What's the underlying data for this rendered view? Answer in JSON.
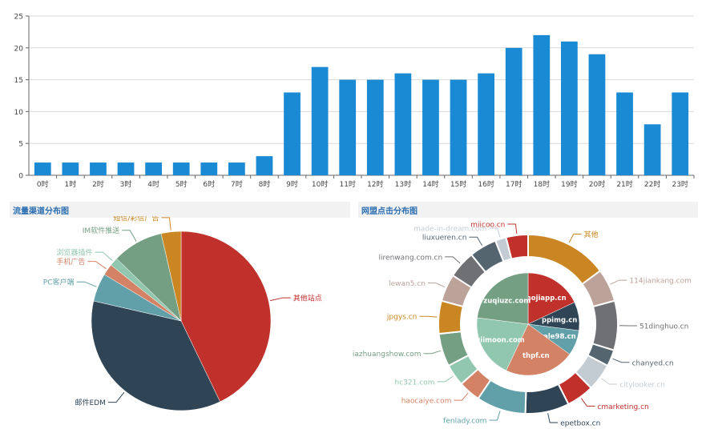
{
  "panels": {
    "traffic_channel_title": "流量渠道分布图",
    "affiliate_click_title": "网盟点击分布图"
  },
  "chart_data": [
    {
      "type": "bar",
      "categories": [
        "0时",
        "1时",
        "2时",
        "3时",
        "4时",
        "5时",
        "6时",
        "7时",
        "8时",
        "9时",
        "10时",
        "11时",
        "12时",
        "13时",
        "14时",
        "15时",
        "16时",
        "17时",
        "18时",
        "19时",
        "20时",
        "21时",
        "22时",
        "23时"
      ],
      "values": [
        2,
        2,
        2,
        2,
        2,
        2,
        2,
        2,
        3,
        13,
        17,
        15,
        15,
        16,
        15,
        15,
        16,
        20,
        22,
        21,
        19,
        13,
        8,
        13
      ],
      "ylim": [
        0,
        25
      ],
      "yticks": [
        0,
        5,
        10,
        15,
        20,
        25
      ],
      "grid": true,
      "color": "#1a8ad4"
    },
    {
      "type": "pie",
      "labels": [
        "其他站点",
        "邮件EDM",
        "PC客户端",
        "手机广告",
        "浏览器插件",
        "IM软件推送",
        "短信/彩信广告"
      ],
      "values": [
        42,
        35,
        5,
        2,
        1.5,
        9,
        3.5
      ],
      "colors": [
        "#c1312c",
        "#2f4555",
        "#61a0a8",
        "#d48265",
        "#91c7ae",
        "#749f83",
        "#ca8622"
      ]
    },
    {
      "type": "pie",
      "inner": {
        "labels": [
          "mojiapp.cn",
          "ppimg.cn",
          "sale98.cn",
          "thpf.cn",
          "viimoon.com",
          "zuqiuzc.com"
        ],
        "values": [
          18,
          9,
          8,
          22,
          20,
          23
        ],
        "colors": [
          "#c1312c",
          "#2f4555",
          "#61a0a8",
          "#d48265",
          "#91c7ae",
          "#749f83"
        ]
      },
      "outer": {
        "labels": [
          "其他",
          "114jiankang.com",
          "51dinghuo.cn",
          "chanyed.cn",
          "citylooker.cn",
          "cmarketing.cn",
          "epetbox.cn",
          "fenlady.com",
          "haocaiye.com",
          "hc321.com",
          "jiazhuangshow.com",
          "jpgys.cn",
          "lewan5.cn",
          "lirenwang.com.cn",
          "liuxueren.cn",
          "made-in-dream.com",
          "miicoo.cn"
        ],
        "values": [
          15,
          6,
          9,
          3,
          5,
          5,
          8,
          9,
          4,
          4,
          6,
          6,
          5,
          5,
          5,
          2,
          4
        ],
        "colors": [
          "#ca8622",
          "#bda29a",
          "#6e7074",
          "#546570",
          "#c4ccd3",
          "#c1312c",
          "#2f4555",
          "#61a0a8",
          "#d48265",
          "#91c7ae",
          "#749f83",
          "#ca8622",
          "#bda29a",
          "#6e7074",
          "#546570",
          "#c4ccd3",
          "#c1312c"
        ]
      }
    }
  ]
}
